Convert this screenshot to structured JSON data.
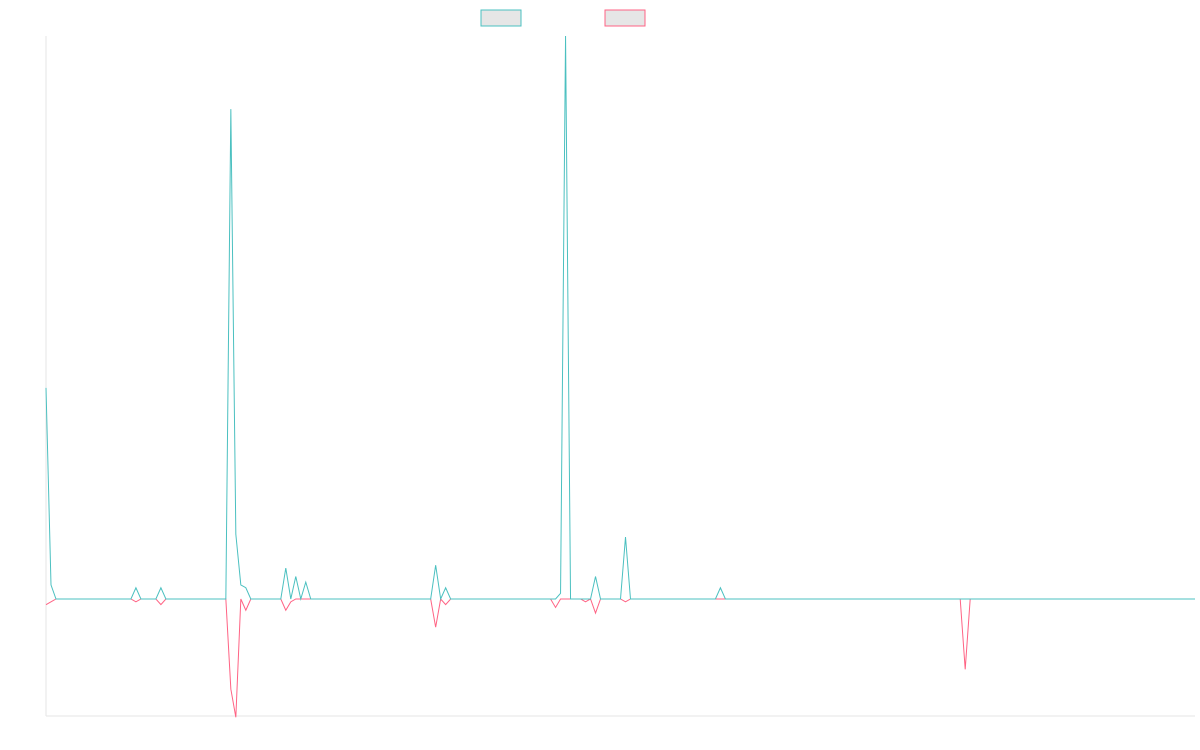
{
  "chart_data": {
    "type": "line",
    "title": "",
    "xlabel": "",
    "ylabel": "",
    "grid": false,
    "legend_position": "top",
    "x_count": 231,
    "ylim": [
      -21,
      100
    ],
    "series": [
      {
        "name": "",
        "color": "#4bc0c0",
        "legend_fill": "#e6e6e6",
        "points": [
          [
            0,
            37.5
          ],
          [
            1,
            2.5
          ],
          [
            2,
            0
          ],
          [
            17,
            0
          ],
          [
            18,
            2
          ],
          [
            19,
            0
          ],
          [
            21,
            0
          ],
          [
            22,
            0
          ],
          [
            23,
            2
          ],
          [
            24,
            0
          ],
          [
            36,
            0
          ],
          [
            37,
            87
          ],
          [
            38,
            11.5
          ],
          [
            39,
            2.5
          ],
          [
            40,
            2
          ],
          [
            41,
            0
          ],
          [
            47,
            0
          ],
          [
            48,
            5.5
          ],
          [
            49,
            0
          ],
          [
            50,
            4
          ],
          [
            51,
            0
          ],
          [
            52,
            3
          ],
          [
            53,
            0
          ],
          [
            77,
            0
          ],
          [
            78,
            6
          ],
          [
            79,
            0
          ],
          [
            80,
            2
          ],
          [
            81,
            0
          ],
          [
            102,
            0
          ],
          [
            103,
            1
          ],
          [
            104,
            100
          ],
          [
            105,
            0
          ],
          [
            109,
            0
          ],
          [
            110,
            4
          ],
          [
            111,
            0
          ],
          [
            115,
            0
          ],
          [
            116,
            11
          ],
          [
            117,
            0
          ],
          [
            134,
            0
          ],
          [
            135,
            2
          ],
          [
            136,
            0
          ],
          [
            230,
            0
          ]
        ]
      },
      {
        "name": "",
        "color": "#ff6384",
        "legend_fill": "#e6e6e6",
        "points": [
          [
            0,
            -1
          ],
          [
            1,
            -0.5
          ],
          [
            2,
            0
          ],
          [
            17,
            0
          ],
          [
            18,
            -0.5
          ],
          [
            19,
            0
          ],
          [
            20,
            0
          ],
          [
            21,
            0
          ],
          [
            22,
            0
          ],
          [
            23,
            -1
          ],
          [
            24,
            0
          ],
          [
            36,
            0
          ],
          [
            37,
            -16
          ],
          [
            38,
            -21
          ],
          [
            39,
            0
          ],
          [
            40,
            -2
          ],
          [
            41,
            0
          ],
          [
            47,
            0
          ],
          [
            48,
            -2
          ],
          [
            49,
            -0.5
          ],
          [
            50,
            0
          ],
          [
            51,
            0
          ],
          [
            77,
            0
          ],
          [
            78,
            -5
          ],
          [
            79,
            0
          ],
          [
            80,
            -1
          ],
          [
            81,
            0
          ],
          [
            101,
            0
          ],
          [
            102,
            -1.5
          ],
          [
            103,
            0
          ],
          [
            107,
            0
          ],
          [
            108,
            -0.5
          ],
          [
            109,
            0
          ],
          [
            110,
            -2.5
          ],
          [
            111,
            0
          ],
          [
            115,
            0
          ],
          [
            116,
            -0.5
          ],
          [
            117,
            0
          ],
          [
            183,
            0
          ],
          [
            184,
            -12.5
          ],
          [
            185,
            0
          ],
          [
            230,
            0
          ]
        ]
      }
    ]
  }
}
